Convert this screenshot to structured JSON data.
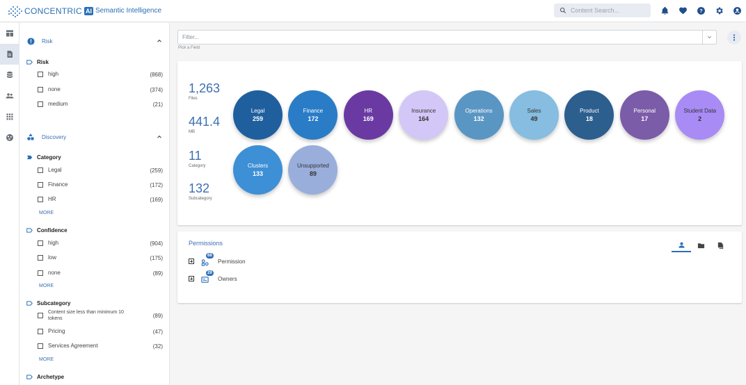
{
  "header": {
    "brand": "CONCENTRIC",
    "ai_badge": "AI",
    "product": "Semantic Intelligence",
    "search_placeholder": "Content Search..."
  },
  "top_icons": [
    "bell-icon",
    "heart-icon",
    "help-icon",
    "settings-icon",
    "account-icon"
  ],
  "rail": [
    "dashboard-icon",
    "document-icon",
    "database-icon",
    "people-icon",
    "apps-icon",
    "globe-icon"
  ],
  "filters": {
    "risk_section": "Risk",
    "risk_group": "Risk",
    "risk_items": [
      {
        "label": "high",
        "count": "(868)"
      },
      {
        "label": "none",
        "count": "(374)"
      },
      {
        "label": "medium",
        "count": "(21)"
      }
    ],
    "discovery_section": "Discovery",
    "category_group": "Category",
    "category_items": [
      {
        "label": "Legal",
        "count": "(259)"
      },
      {
        "label": "Finance",
        "count": "(172)"
      },
      {
        "label": "HR",
        "count": "(169)"
      }
    ],
    "confidence_group": "Confidence",
    "confidence_items": [
      {
        "label": "high",
        "count": "(904)"
      },
      {
        "label": "low",
        "count": "(175)"
      },
      {
        "label": "none",
        "count": "(89)"
      }
    ],
    "subcategory_group": "Subcategory",
    "subcategory_items": [
      {
        "label": "Content size less than minimum 10 tokens",
        "count": "(89)"
      },
      {
        "label": "Pricing",
        "count": "(47)"
      },
      {
        "label": "Services Agreement",
        "count": "(32)"
      }
    ],
    "archetype_group": "Archetype",
    "more_label": "MORE"
  },
  "main": {
    "filter_placeholder": "Filter...",
    "filter_hint": "Pick a Field",
    "stats": [
      {
        "value": "1,263",
        "label": "Files"
      },
      {
        "value": "441.4",
        "label": "MB"
      },
      {
        "value": "11",
        "label": "Category"
      },
      {
        "value": "132",
        "label": "Subcategory"
      }
    ],
    "bubbles": [
      {
        "label": "Legal",
        "value": "259",
        "color": "#1f5f9e",
        "text": "#ffffff"
      },
      {
        "label": "Finance",
        "value": "172",
        "color": "#2a7cc7",
        "text": "#ffffff"
      },
      {
        "label": "HR",
        "value": "169",
        "color": "#6a3aa2",
        "text": "#ffffff"
      },
      {
        "label": "Insurance",
        "value": "164",
        "color": "#d3c7f7",
        "text": "#333333"
      },
      {
        "label": "Operations",
        "value": "132",
        "color": "#5a96c3",
        "text": "#ffffff"
      },
      {
        "label": "Sales",
        "value": "49",
        "color": "#86bde0",
        "text": "#333333"
      },
      {
        "label": "Product",
        "value": "18",
        "color": "#2c5e8e",
        "text": "#ffffff"
      },
      {
        "label": "Personal",
        "value": "17",
        "color": "#7b5ca8",
        "text": "#ffffff"
      },
      {
        "label": "Student Data",
        "value": "2",
        "color": "#a88bf5",
        "text": "#333333"
      },
      {
        "label": "Clusters",
        "value": "133",
        "color": "#3d8fd6",
        "text": "#ffffff"
      },
      {
        "label": "Unsupported",
        "value": "89",
        "color": "#9aaedb",
        "text": "#333333"
      }
    ],
    "permissions_title": "Permissions",
    "permission_rows": [
      {
        "label": "Permission",
        "badge": "68"
      },
      {
        "label": "Owners",
        "badge": "29"
      }
    ]
  }
}
